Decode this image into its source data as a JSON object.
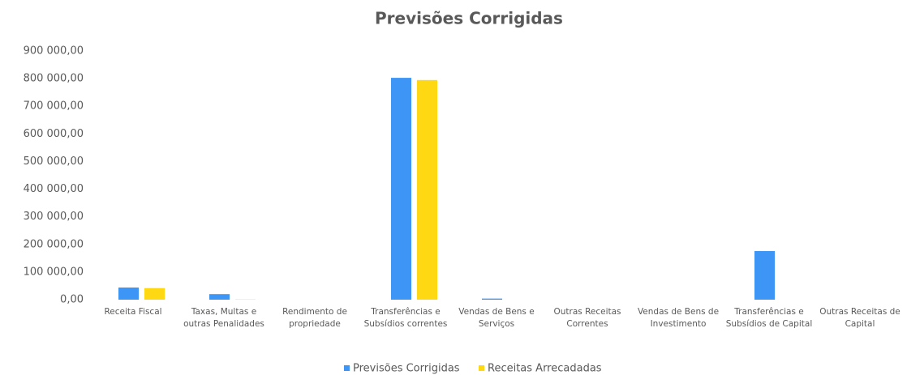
{
  "chart_data": {
    "type": "bar",
    "title": "Previsões Corrigidas",
    "categories": [
      "Receita Fiscal",
      "Taxas, Multas e outras Penalidades",
      "Rendimento de propriedade",
      "Transferências e Subsídios correntes",
      "Vendas de Bens e Serviços",
      "Outras Receitas Correntes",
      "Vendas de Bens de Investimento",
      "Transferências e Subsídios de Capital",
      "Outras Receitas de Capital"
    ],
    "series": [
      {
        "name": "Previsões Corrigidas",
        "color": "#3d95f5",
        "values": [
          44000,
          20000,
          0,
          803000,
          4000,
          0,
          0,
          176000,
          0
        ]
      },
      {
        "name": "Receitas Arrecadadas",
        "color": "#ffd814",
        "values": [
          42000,
          1000,
          0,
          795000,
          0,
          0,
          0,
          0,
          0
        ]
      }
    ],
    "ylim": [
      0,
      900000
    ],
    "yticks": [
      {
        "value": 0,
        "label": "0,00"
      },
      {
        "value": 100000,
        "label": "100 000,00"
      },
      {
        "value": 200000,
        "label": "200 000,00"
      },
      {
        "value": 300000,
        "label": "300 000,00"
      },
      {
        "value": 400000,
        "label": "400 000,00"
      },
      {
        "value": 500000,
        "label": "500 000,00"
      },
      {
        "value": 600000,
        "label": "600 000,00"
      },
      {
        "value": 700000,
        "label": "700 000,00"
      },
      {
        "value": 800000,
        "label": "800 000,00"
      },
      {
        "value": 900000,
        "label": "900 000,00"
      }
    ],
    "grid": false,
    "legend": "bottom"
  }
}
